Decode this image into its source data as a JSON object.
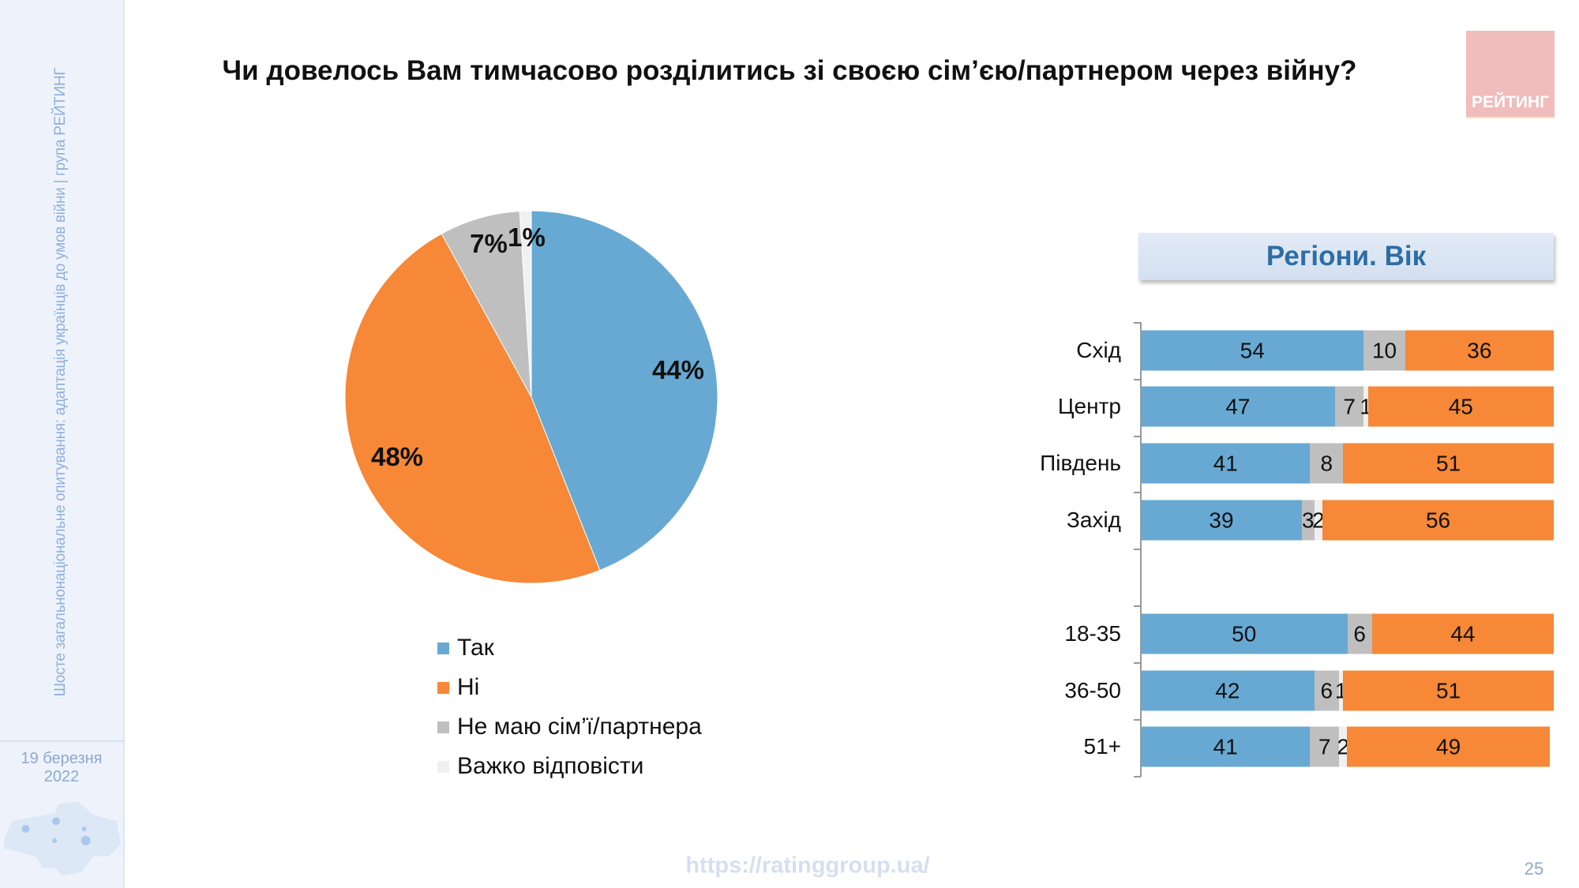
{
  "sidebar": {
    "vertical_text": "Шосте загальнонаціональне опитування: адаптація українців до умов війни | група РЕЙТИНГ",
    "date_line1": "19 березня",
    "date_line2": "2022"
  },
  "title": "Чи довелось Вам тимчасово розділитись зі своєю сім’єю/партнером через війну?",
  "logo": "РЕЙТИНГ",
  "footer": {
    "url": "https://ratinggroup.ua/",
    "page_number": "25"
  },
  "colors": {
    "Так": "#67a9d3",
    "Ні": "#f68837",
    "Не маю сім’ї/партнера": "#bfbfbf",
    "Важко відповісти": "#f0f0f0"
  },
  "chart_data": [
    {
      "type": "pie",
      "categories": [
        "Так",
        "Ні",
        "Не маю сім’ї/партнера",
        "Важко відповісти"
      ],
      "values": [
        44,
        48,
        7,
        1
      ],
      "labels": [
        "44%",
        "48%",
        "7%",
        "1%"
      ],
      "legend_position": "bottom"
    },
    {
      "type": "bar",
      "orientation": "horizontal",
      "stacked": true,
      "header": "Регіони. Вік",
      "categories": [
        "Схід",
        "Центр",
        "Південь",
        "Захід",
        "18-35",
        "36-50",
        "51+"
      ],
      "series": [
        {
          "key": "Так",
          "values": [
            54,
            47,
            41,
            39,
            50,
            42,
            41
          ]
        },
        {
          "key": "Не маю сім’ї/партнера",
          "values": [
            10,
            7,
            8,
            3,
            6,
            6,
            7
          ]
        },
        {
          "key": "Важко відповісти",
          "values": [
            0,
            1,
            0,
            2,
            0,
            1,
            2
          ]
        },
        {
          "key": "Ні",
          "values": [
            36,
            45,
            51,
            56,
            44,
            51,
            49
          ]
        }
      ],
      "xlim": [
        0,
        100
      ]
    }
  ]
}
